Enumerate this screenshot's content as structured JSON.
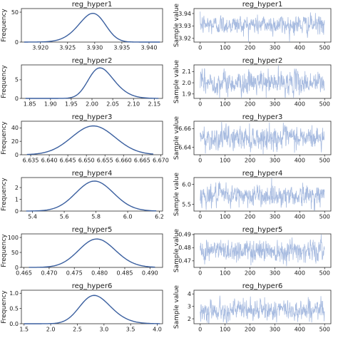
{
  "figure": {
    "density_ylabel": "Frequency",
    "trace_ylabel": "Sample value"
  },
  "colors": {
    "density_line": "#3a5f9f",
    "trace_line": "#a7bbe0",
    "frame": "#2b2b2b",
    "text": "#1a1a1a"
  },
  "chart_data": [
    {
      "type": "line",
      "title": "reg_hyper1",
      "kind": "density",
      "xlim": [
        3.9165,
        3.9425
      ],
      "ylim": [
        0,
        56
      ],
      "xticks": [
        3.92,
        3.925,
        3.93,
        3.935,
        3.94
      ],
      "xticklabels": [
        "3.920",
        "3.925",
        "3.930",
        "3.935",
        "3.940"
      ],
      "yticks": [
        0,
        50
      ],
      "yticklabels": [
        "0",
        "50"
      ],
      "mean": 3.9315,
      "sd": 0.0034,
      "skew": -1.5,
      "peak": 48,
      "lo": 3.917,
      "hi": 3.942
    },
    {
      "type": "line",
      "title": "reg_hyper1",
      "kind": "trace",
      "xlim": [
        -25,
        525
      ],
      "ylim": [
        3.917,
        3.944
      ],
      "xticks": [
        0,
        100,
        200,
        300,
        400,
        500
      ],
      "xticklabels": [
        "0",
        "100",
        "200",
        "300",
        "400",
        "500"
      ],
      "yticks": [
        3.92,
        3.93,
        3.94
      ],
      "yticklabels": [
        "3.92",
        "3.93",
        "3.94"
      ],
      "mean": 3.931,
      "sd": 0.0038,
      "n": 500
    },
    {
      "type": "line",
      "title": "reg_hyper2",
      "kind": "density",
      "xlim": [
        1.83,
        2.17
      ],
      "ylim": [
        0,
        9
      ],
      "xticks": [
        1.85,
        1.9,
        1.95,
        2.0,
        2.05,
        2.1,
        2.15
      ],
      "xticklabels": [
        "1.85",
        "1.90",
        "1.95",
        "2.00",
        "2.05",
        "2.10",
        "2.15"
      ],
      "yticks": [
        0,
        5
      ],
      "yticklabels": [
        "0",
        "5"
      ],
      "mean": 1.995,
      "sd": 0.045,
      "skew": 1.8,
      "peak": 8.2,
      "lo": 1.84,
      "hi": 2.16
    },
    {
      "type": "line",
      "title": "reg_hyper2",
      "kind": "trace",
      "xlim": [
        -25,
        525
      ],
      "ylim": [
        1.86,
        2.16
      ],
      "xticks": [
        0,
        100,
        200,
        300,
        400,
        500
      ],
      "xticklabels": [
        "0",
        "100",
        "200",
        "300",
        "400",
        "500"
      ],
      "yticks": [
        1.9,
        2.0,
        2.1
      ],
      "yticklabels": [
        "1.9",
        "2.0",
        "2.1"
      ],
      "mean": 2.0,
      "sd": 0.05,
      "n": 500
    },
    {
      "type": "line",
      "title": "reg_hyper3",
      "kind": "density",
      "xlim": [
        6.6325,
        6.6705
      ],
      "ylim": [
        0,
        50
      ],
      "xticks": [
        6.635,
        6.64,
        6.645,
        6.65,
        6.655,
        6.66,
        6.665,
        6.67
      ],
      "xticklabels": [
        "6.635",
        "6.640",
        "6.645",
        "6.650",
        "6.655",
        "6.660",
        "6.665",
        "6.670"
      ],
      "yticks": [
        0,
        20,
        40
      ],
      "yticklabels": [
        "0",
        "20",
        "40"
      ],
      "mean": 6.6505,
      "sd": 0.006,
      "skew": 0.3,
      "peak": 43,
      "lo": 6.634,
      "hi": 6.668
    },
    {
      "type": "line",
      "title": "reg_hyper3",
      "kind": "trace",
      "xlim": [
        -25,
        525
      ],
      "ylim": [
        6.632,
        6.668
      ],
      "xticks": [
        0,
        100,
        200,
        300,
        400,
        500
      ],
      "xticklabels": [
        "0",
        "100",
        "200",
        "300",
        "400",
        "500"
      ],
      "yticks": [
        6.64,
        6.66
      ],
      "yticklabels": [
        "6.64",
        "6.66"
      ],
      "mean": 6.65,
      "sd": 0.006,
      "n": 500
    },
    {
      "type": "line",
      "title": "reg_hyper4",
      "kind": "density",
      "xlim": [
        5.33,
        6.22
      ],
      "ylim": [
        0,
        2.85
      ],
      "xticks": [
        5.4,
        5.6,
        5.8,
        6.0,
        6.2
      ],
      "xticklabels": [
        "5.4",
        "5.6",
        "5.8",
        "6.0",
        "6.2"
      ],
      "yticks": [
        0,
        1,
        2
      ],
      "yticklabels": [
        "0",
        "1",
        "2"
      ],
      "mean": 5.74,
      "sd": 0.13,
      "skew": 0.6,
      "peak": 2.55,
      "lo": 5.36,
      "hi": 6.18
    },
    {
      "type": "line",
      "title": "reg_hyper4",
      "kind": "trace",
      "xlim": [
        -25,
        525
      ],
      "ylim": [
        5.33,
        6.17
      ],
      "xticks": [
        0,
        100,
        200,
        300,
        400,
        500
      ],
      "xticklabels": [
        "0",
        "100",
        "200",
        "300",
        "400",
        "500"
      ],
      "yticks": [
        5.5,
        6.0
      ],
      "yticklabels": [
        "5.5",
        "6.0"
      ],
      "mean": 5.72,
      "sd": 0.13,
      "n": 500
    },
    {
      "type": "line",
      "title": "reg_hyper5",
      "kind": "density",
      "xlim": [
        0.4645,
        0.4925
      ],
      "ylim": [
        0,
        112
      ],
      "xticks": [
        0.465,
        0.47,
        0.475,
        0.48,
        0.485,
        0.49
      ],
      "xticklabels": [
        "0.465",
        "0.470",
        "0.475",
        "0.480",
        "0.485",
        "0.490"
      ],
      "yticks": [
        0,
        50,
        100
      ],
      "yticklabels": [
        "0",
        "50",
        "100"
      ],
      "mean": 0.4775,
      "sd": 0.0042,
      "skew": 0.8,
      "peak": 95,
      "lo": 0.466,
      "hi": 0.491
    },
    {
      "type": "line",
      "title": "reg_hyper5",
      "kind": "trace",
      "xlim": [
        -25,
        525
      ],
      "ylim": [
        0.465,
        0.4905
      ],
      "xticks": [
        0,
        100,
        200,
        300,
        400,
        500
      ],
      "xticklabels": [
        "0",
        "100",
        "200",
        "300",
        "400",
        "500"
      ],
      "yticks": [
        0.47,
        0.48,
        0.49
      ],
      "yticklabels": [
        "0.47",
        "0.48",
        "0.49"
      ],
      "mean": 0.478,
      "sd": 0.0042,
      "n": 500
    },
    {
      "type": "line",
      "title": "reg_hyper6",
      "kind": "density",
      "xlim": [
        1.45,
        4.1
      ],
      "ylim": [
        0,
        1.1
      ],
      "xticks": [
        1.5,
        2.0,
        2.5,
        3.0,
        3.5,
        4.0
      ],
      "xticklabels": [
        "1.5",
        "2.0",
        "2.5",
        "3.0",
        "3.5",
        "4.0"
      ],
      "yticks": [
        0,
        0.5,
        1.0
      ],
      "yticklabels": [
        "0.0",
        "0.5",
        "1.0"
      ],
      "mean": 2.6,
      "sd": 0.4,
      "skew": 1.5,
      "peak": 0.93,
      "lo": 1.5,
      "hi": 4.05
    },
    {
      "type": "line",
      "title": "reg_hyper6",
      "kind": "trace",
      "xlim": [
        -25,
        525
      ],
      "ylim": [
        1.6,
        4.3
      ],
      "xticks": [
        0,
        100,
        200,
        300,
        400,
        500
      ],
      "xticklabels": [
        "0",
        "100",
        "200",
        "300",
        "400",
        "500"
      ],
      "yticks": [
        2,
        3,
        4
      ],
      "yticklabels": [
        "2",
        "3",
        "4"
      ],
      "mean": 2.7,
      "sd": 0.4,
      "n": 500
    }
  ]
}
